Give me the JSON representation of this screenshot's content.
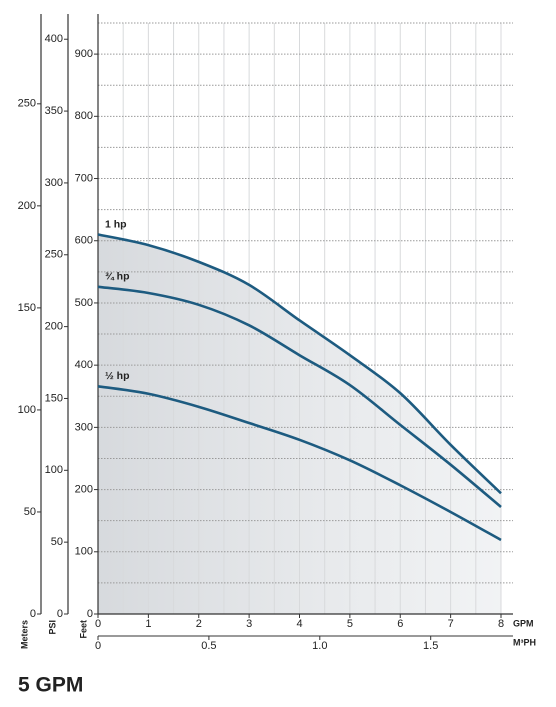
{
  "chart_data": {
    "type": "line",
    "title": "5 GPM",
    "x_label": "GPM",
    "y_label": "Feet",
    "x": [
      0,
      1,
      2,
      3,
      4,
      5,
      6,
      7,
      8
    ],
    "xlim": [
      0,
      8
    ],
    "xticks": [
      0,
      1,
      2,
      3,
      4,
      5,
      6,
      7,
      8
    ],
    "xgrid": [
      0.5,
      1,
      1.5,
      2,
      2.5,
      3,
      3.5,
      4,
      4.5,
      5,
      5.5,
      6,
      6.5,
      7,
      7.5,
      8
    ],
    "ylim": [
      0,
      950
    ],
    "yticks": [
      0,
      100,
      200,
      300,
      400,
      500,
      600,
      700,
      800,
      900
    ],
    "ygrid": [
      50,
      100,
      150,
      200,
      250,
      300,
      350,
      400,
      450,
      500,
      550,
      600,
      650,
      700,
      750,
      800,
      850,
      900,
      950
    ],
    "series": [
      {
        "name": "1 hp",
        "color": "#1d5b80",
        "values": [
          610,
          593,
          566,
          529,
          472,
          416,
          355,
          272,
          194
        ]
      },
      {
        "name": "¾ hp",
        "color": "#1d5b80",
        "values": [
          526,
          516,
          497,
          464,
          416,
          368,
          304,
          240,
          172
        ]
      },
      {
        "name": "½ hp",
        "color": "#1d5b80",
        "values": [
          366,
          354,
          333,
          307,
          280,
          247,
          207,
          164,
          119
        ]
      }
    ],
    "meters_axis": {
      "label": "Meters",
      "ylim": [
        0,
        289.6
      ],
      "yticks": [
        0,
        50,
        100,
        150,
        200,
        250
      ]
    },
    "psi_axis": {
      "label": "PSI",
      "ylim": [
        0,
        411.3
      ],
      "yticks": [
        0,
        50,
        100,
        150,
        200,
        250,
        300,
        350,
        400
      ]
    },
    "m3ph_axis": {
      "label": "M³PH",
      "xlim": [
        0,
        1.817
      ],
      "xticks": [
        0,
        0.5,
        {
          "value": 1,
          "label": "1.0"
        },
        1.5
      ]
    }
  }
}
